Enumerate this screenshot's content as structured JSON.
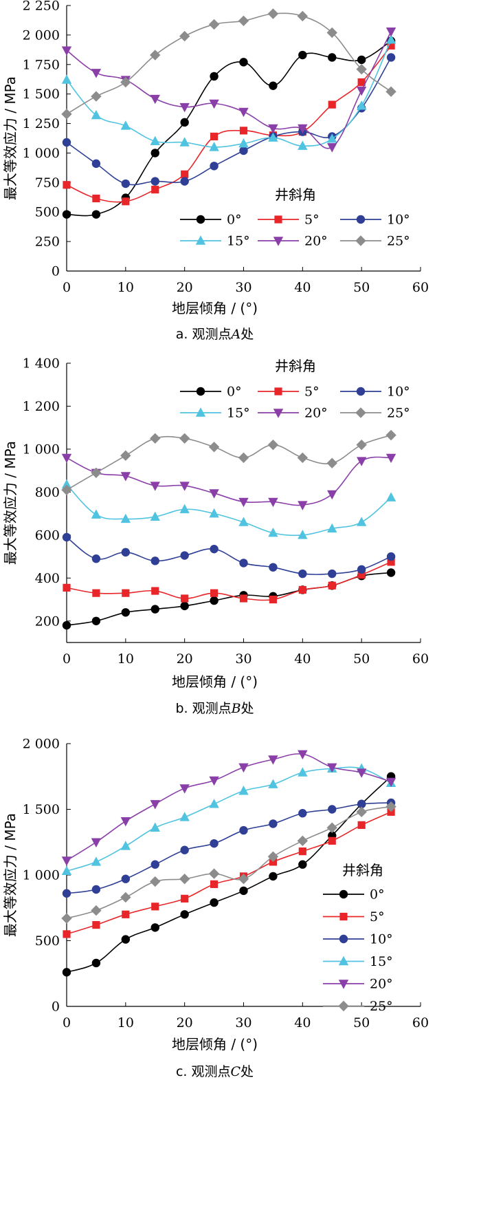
{
  "chart_data": [
    {
      "type": "line",
      "caption_prefix": "a. 观测点",
      "caption_letter": "A",
      "caption_suffix": "处",
      "xlabel": "地层倾角 / (°)",
      "ylabel": "最大等效应力 / MPa",
      "xlim": [
        0,
        60
      ],
      "ylim": [
        0,
        2250
      ],
      "xticks": [
        0,
        10,
        20,
        30,
        40,
        50,
        60
      ],
      "yticks": [
        0,
        250,
        500,
        750,
        1000,
        1250,
        1500,
        1750,
        2000,
        2250
      ],
      "ytick_labels": [
        "0",
        "250",
        "500",
        "750",
        "1 000",
        "1 250",
        "1 500",
        "1 750",
        "2 000",
        "2 250"
      ],
      "legend_title": "井斜角",
      "x": [
        0,
        5,
        10,
        15,
        20,
        25,
        30,
        35,
        40,
        45,
        50,
        55
      ],
      "series": [
        {
          "name": "0°",
          "color": "#000000",
          "marker": "circle",
          "values": [
            480,
            480,
            620,
            1000,
            1260,
            1650,
            1770,
            1570,
            1830,
            1810,
            1790,
            1950
          ]
        },
        {
          "name": "5°",
          "color": "#e8262a",
          "marker": "square",
          "values": [
            730,
            615,
            590,
            690,
            820,
            1140,
            1190,
            1150,
            1180,
            1410,
            1600,
            1910
          ]
        },
        {
          "name": "10°",
          "color": "#2e3f95",
          "marker": "circle",
          "values": [
            1090,
            910,
            740,
            760,
            760,
            890,
            1020,
            1140,
            1180,
            1140,
            1380,
            1810
          ]
        },
        {
          "name": "15°",
          "color": "#4fc3e0",
          "marker": "triangle",
          "values": [
            1620,
            1320,
            1230,
            1100,
            1090,
            1050,
            1080,
            1130,
            1060,
            1120,
            1400,
            1960
          ]
        },
        {
          "name": "20°",
          "color": "#8a3fa8",
          "marker": "tri-down",
          "values": [
            1870,
            1680,
            1620,
            1460,
            1390,
            1420,
            1350,
            1210,
            1210,
            1050,
            1530,
            2030
          ]
        },
        {
          "name": "25°",
          "color": "#8c8c8c",
          "marker": "diamond",
          "values": [
            1330,
            1480,
            1600,
            1830,
            1990,
            2090,
            2120,
            2180,
            2160,
            2020,
            1710,
            1520
          ]
        }
      ]
    },
    {
      "type": "line",
      "caption_prefix": "b. 观测点",
      "caption_letter": "B",
      "caption_suffix": "处",
      "xlabel": "地层倾角 / (°)",
      "ylabel": "最大等效应力 / MPa",
      "xlim": [
        0,
        60
      ],
      "ylim": [
        100,
        1400
      ],
      "xticks": [
        0,
        10,
        20,
        30,
        40,
        50,
        60
      ],
      "yticks": [
        200,
        400,
        600,
        800,
        1000,
        1200,
        1400
      ],
      "ytick_labels": [
        "200",
        "400",
        "600",
        "800",
        "1 000",
        "1 200",
        "1 400"
      ],
      "legend_title": "井斜角",
      "x": [
        0,
        5,
        10,
        15,
        20,
        25,
        30,
        35,
        40,
        45,
        50,
        55
      ],
      "series": [
        {
          "name": "0°",
          "color": "#000000",
          "marker": "circle",
          "values": [
            180,
            200,
            240,
            255,
            270,
            295,
            320,
            315,
            345,
            365,
            410,
            425
          ]
        },
        {
          "name": "5°",
          "color": "#e8262a",
          "marker": "square",
          "values": [
            355,
            330,
            330,
            340,
            305,
            330,
            305,
            300,
            345,
            365,
            415,
            475
          ]
        },
        {
          "name": "10°",
          "color": "#2e3f95",
          "marker": "circle",
          "values": [
            590,
            490,
            520,
            480,
            505,
            535,
            470,
            450,
            420,
            420,
            440,
            500
          ]
        },
        {
          "name": "15°",
          "color": "#4fc3e0",
          "marker": "triangle",
          "values": [
            835,
            695,
            675,
            685,
            720,
            700,
            660,
            610,
            600,
            630,
            660,
            775
          ]
        },
        {
          "name": "20°",
          "color": "#8a3fa8",
          "marker": "tri-down",
          "values": [
            960,
            890,
            875,
            830,
            830,
            795,
            755,
            755,
            740,
            790,
            945,
            960
          ]
        },
        {
          "name": "25°",
          "color": "#8c8c8c",
          "marker": "diamond",
          "values": [
            810,
            890,
            970,
            1050,
            1050,
            1010,
            960,
            1020,
            960,
            935,
            1020,
            1065
          ]
        }
      ]
    },
    {
      "type": "line",
      "caption_prefix": "c. 观测点",
      "caption_letter": "C",
      "caption_suffix": "处",
      "xlabel": "地层倾角 / (°)",
      "ylabel": "最大等效应力 / MPa",
      "xlim": [
        0,
        60
      ],
      "ylim": [
        0,
        2000
      ],
      "xticks": [
        0,
        10,
        20,
        30,
        40,
        50,
        60
      ],
      "yticks": [
        0,
        500,
        1000,
        1500,
        2000
      ],
      "ytick_labels": [
        "0",
        "500",
        "1 000",
        "1 500",
        "2 000"
      ],
      "legend_title": "井斜角",
      "x": [
        0,
        5,
        10,
        15,
        20,
        25,
        30,
        35,
        40,
        45,
        50,
        55
      ],
      "series": [
        {
          "name": "0°",
          "color": "#000000",
          "marker": "circle",
          "values": [
            260,
            330,
            510,
            600,
            700,
            790,
            880,
            990,
            1080,
            1300,
            1540,
            1750
          ]
        },
        {
          "name": "5°",
          "color": "#e8262a",
          "marker": "square",
          "values": [
            550,
            620,
            700,
            760,
            820,
            930,
            990,
            1100,
            1180,
            1260,
            1380,
            1480
          ]
        },
        {
          "name": "10°",
          "color": "#2e3f95",
          "marker": "circle",
          "values": [
            860,
            890,
            970,
            1080,
            1190,
            1240,
            1340,
            1390,
            1470,
            1500,
            1540,
            1550
          ]
        },
        {
          "name": "15°",
          "color": "#4fc3e0",
          "marker": "triangle",
          "values": [
            1030,
            1100,
            1220,
            1360,
            1440,
            1540,
            1640,
            1690,
            1780,
            1810,
            1810,
            1700
          ]
        },
        {
          "name": "20°",
          "color": "#8a3fa8",
          "marker": "tri-down",
          "values": [
            1110,
            1250,
            1410,
            1540,
            1660,
            1720,
            1820,
            1880,
            1920,
            1820,
            1780,
            1710
          ]
        },
        {
          "name": "25°",
          "color": "#8c8c8c",
          "marker": "diamond",
          "values": [
            670,
            730,
            830,
            950,
            970,
            1010,
            970,
            1140,
            1260,
            1360,
            1480,
            1520
          ]
        }
      ]
    }
  ]
}
